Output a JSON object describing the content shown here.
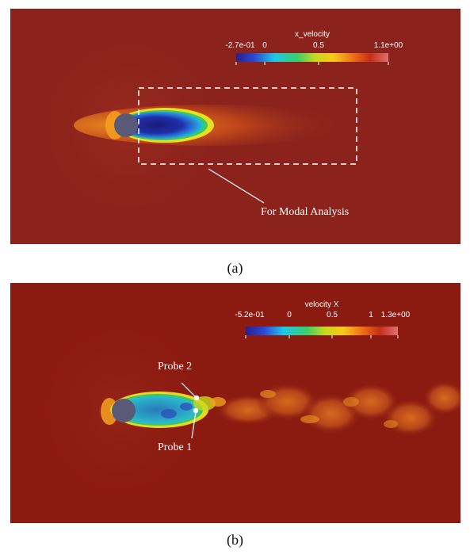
{
  "panel_a": {
    "caption": "(a)",
    "colorbar": {
      "title": "x_velocity",
      "ticks": [
        "-2.7e-01",
        "0",
        "0.5",
        "1.1e+00"
      ]
    },
    "annotation": "For Modal Analysis",
    "colors": {
      "background": "#8b231c",
      "cylinder": "#5a5a78",
      "box": "#ffffff"
    }
  },
  "panel_b": {
    "caption": "(b)",
    "colorbar": {
      "title": "velocity X",
      "ticks": [
        "-5.2e-01",
        "0",
        "0.5",
        "1",
        "1.3e+00"
      ]
    },
    "probes": [
      "Probe 2",
      "Probe 1"
    ],
    "colors": {
      "background": "#8b1a10",
      "cylinder": "#5a5a78"
    }
  }
}
